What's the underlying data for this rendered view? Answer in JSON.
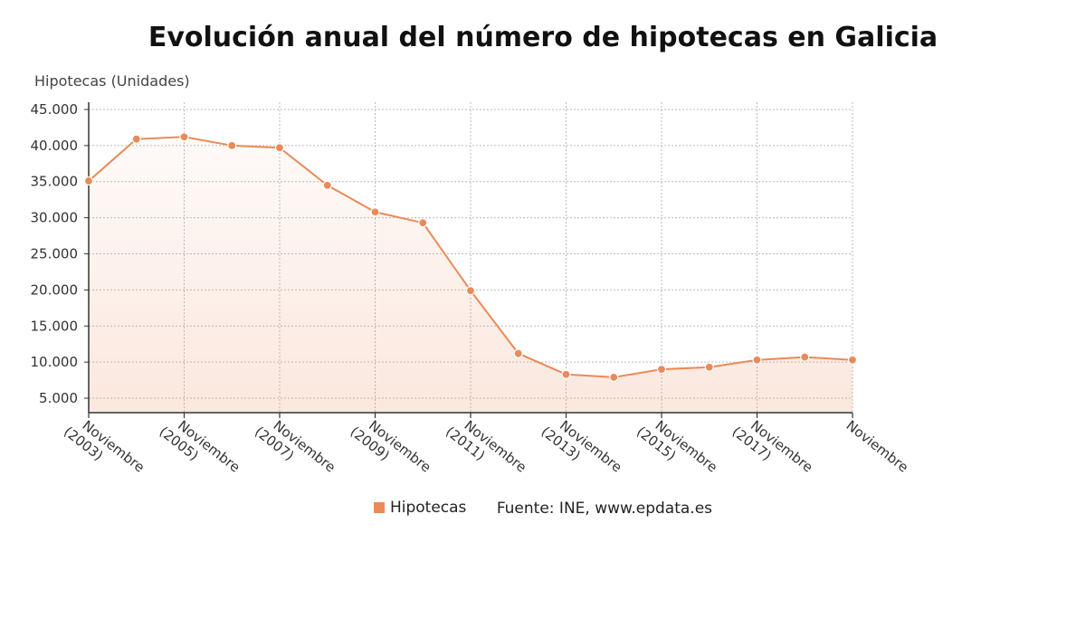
{
  "colors": {
    "series": "#ea8a59",
    "grid": "#bbbbbb",
    "axis": "#333333"
  },
  "legend": {
    "series_label": "Hipotecas",
    "source": "Fuente: INE, www.epdata.es"
  },
  "chart_data": {
    "type": "area",
    "title": "Evolución anual del número de hipotecas en Galicia",
    "ylabel": "Hipotecas (Unidades)",
    "xlabel": "",
    "ylim": [
      3000,
      46000
    ],
    "yticks": [
      5000,
      10000,
      15000,
      20000,
      25000,
      30000,
      35000,
      40000,
      45000
    ],
    "ytick_labels": [
      "5.000",
      "10.000",
      "15.000",
      "20.000",
      "25.000",
      "30.000",
      "35.000",
      "40.000",
      "45.000"
    ],
    "grid": true,
    "legend_position": "bottom",
    "xtick_labels": [
      [
        "Noviembre",
        "(2003)"
      ],
      [
        "Noviembre",
        "(2005)"
      ],
      [
        "Noviembre",
        "(2007)"
      ],
      [
        "Noviembre",
        "(2009)"
      ],
      [
        "Noviembre",
        "(2011)"
      ],
      [
        "Noviembre",
        "(2013)"
      ],
      [
        "Noviembre",
        "(2015)"
      ],
      [
        "Noviembre",
        "(2017)"
      ],
      [
        "Noviembre"
      ]
    ],
    "series": [
      {
        "name": "Hipotecas",
        "x": [
          2003,
          2004,
          2005,
          2006,
          2007,
          2008,
          2009,
          2010,
          2011,
          2012,
          2013,
          2014,
          2015,
          2016,
          2017,
          2018,
          2019
        ],
        "values": [
          35100,
          40900,
          41200,
          40000,
          39700,
          34500,
          30800,
          29300,
          19900,
          11200,
          8300,
          7900,
          9000,
          9300,
          10300,
          10700,
          10300
        ]
      }
    ]
  }
}
